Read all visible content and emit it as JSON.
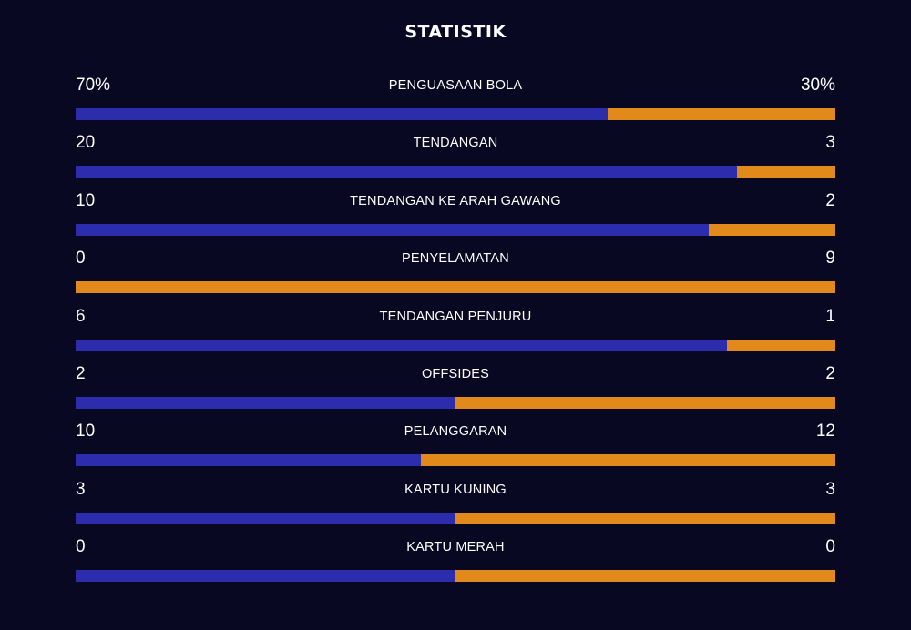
{
  "title": "STATISTIK",
  "colors": {
    "background": "#090822",
    "home_bar": "#2c2dad",
    "away_bar": "#e18a1b"
  },
  "stats": [
    {
      "label": "PENGUASAAN BOLA",
      "home": "70%",
      "away": "30%",
      "home_share": 0.7
    },
    {
      "label": "TENDANGAN",
      "home": "20",
      "away": "3",
      "home_share": 0.87
    },
    {
      "label": "TENDANGAN KE ARAH GAWANG",
      "home": "10",
      "away": "2",
      "home_share": 0.833
    },
    {
      "label": "PENYELAMATAN",
      "home": "0",
      "away": "9",
      "home_share": 0.0
    },
    {
      "label": "TENDANGAN PENJURU",
      "home": "6",
      "away": "1",
      "home_share": 0.857
    },
    {
      "label": "OFFSIDES",
      "home": "2",
      "away": "2",
      "home_share": 0.5
    },
    {
      "label": "PELANGGARAN",
      "home": "10",
      "away": "12",
      "home_share": 0.455
    },
    {
      "label": "KARTU KUNING",
      "home": "3",
      "away": "3",
      "home_share": 0.5
    },
    {
      "label": "KARTU MERAH",
      "home": "0",
      "away": "0",
      "home_share": 0.5
    }
  ]
}
